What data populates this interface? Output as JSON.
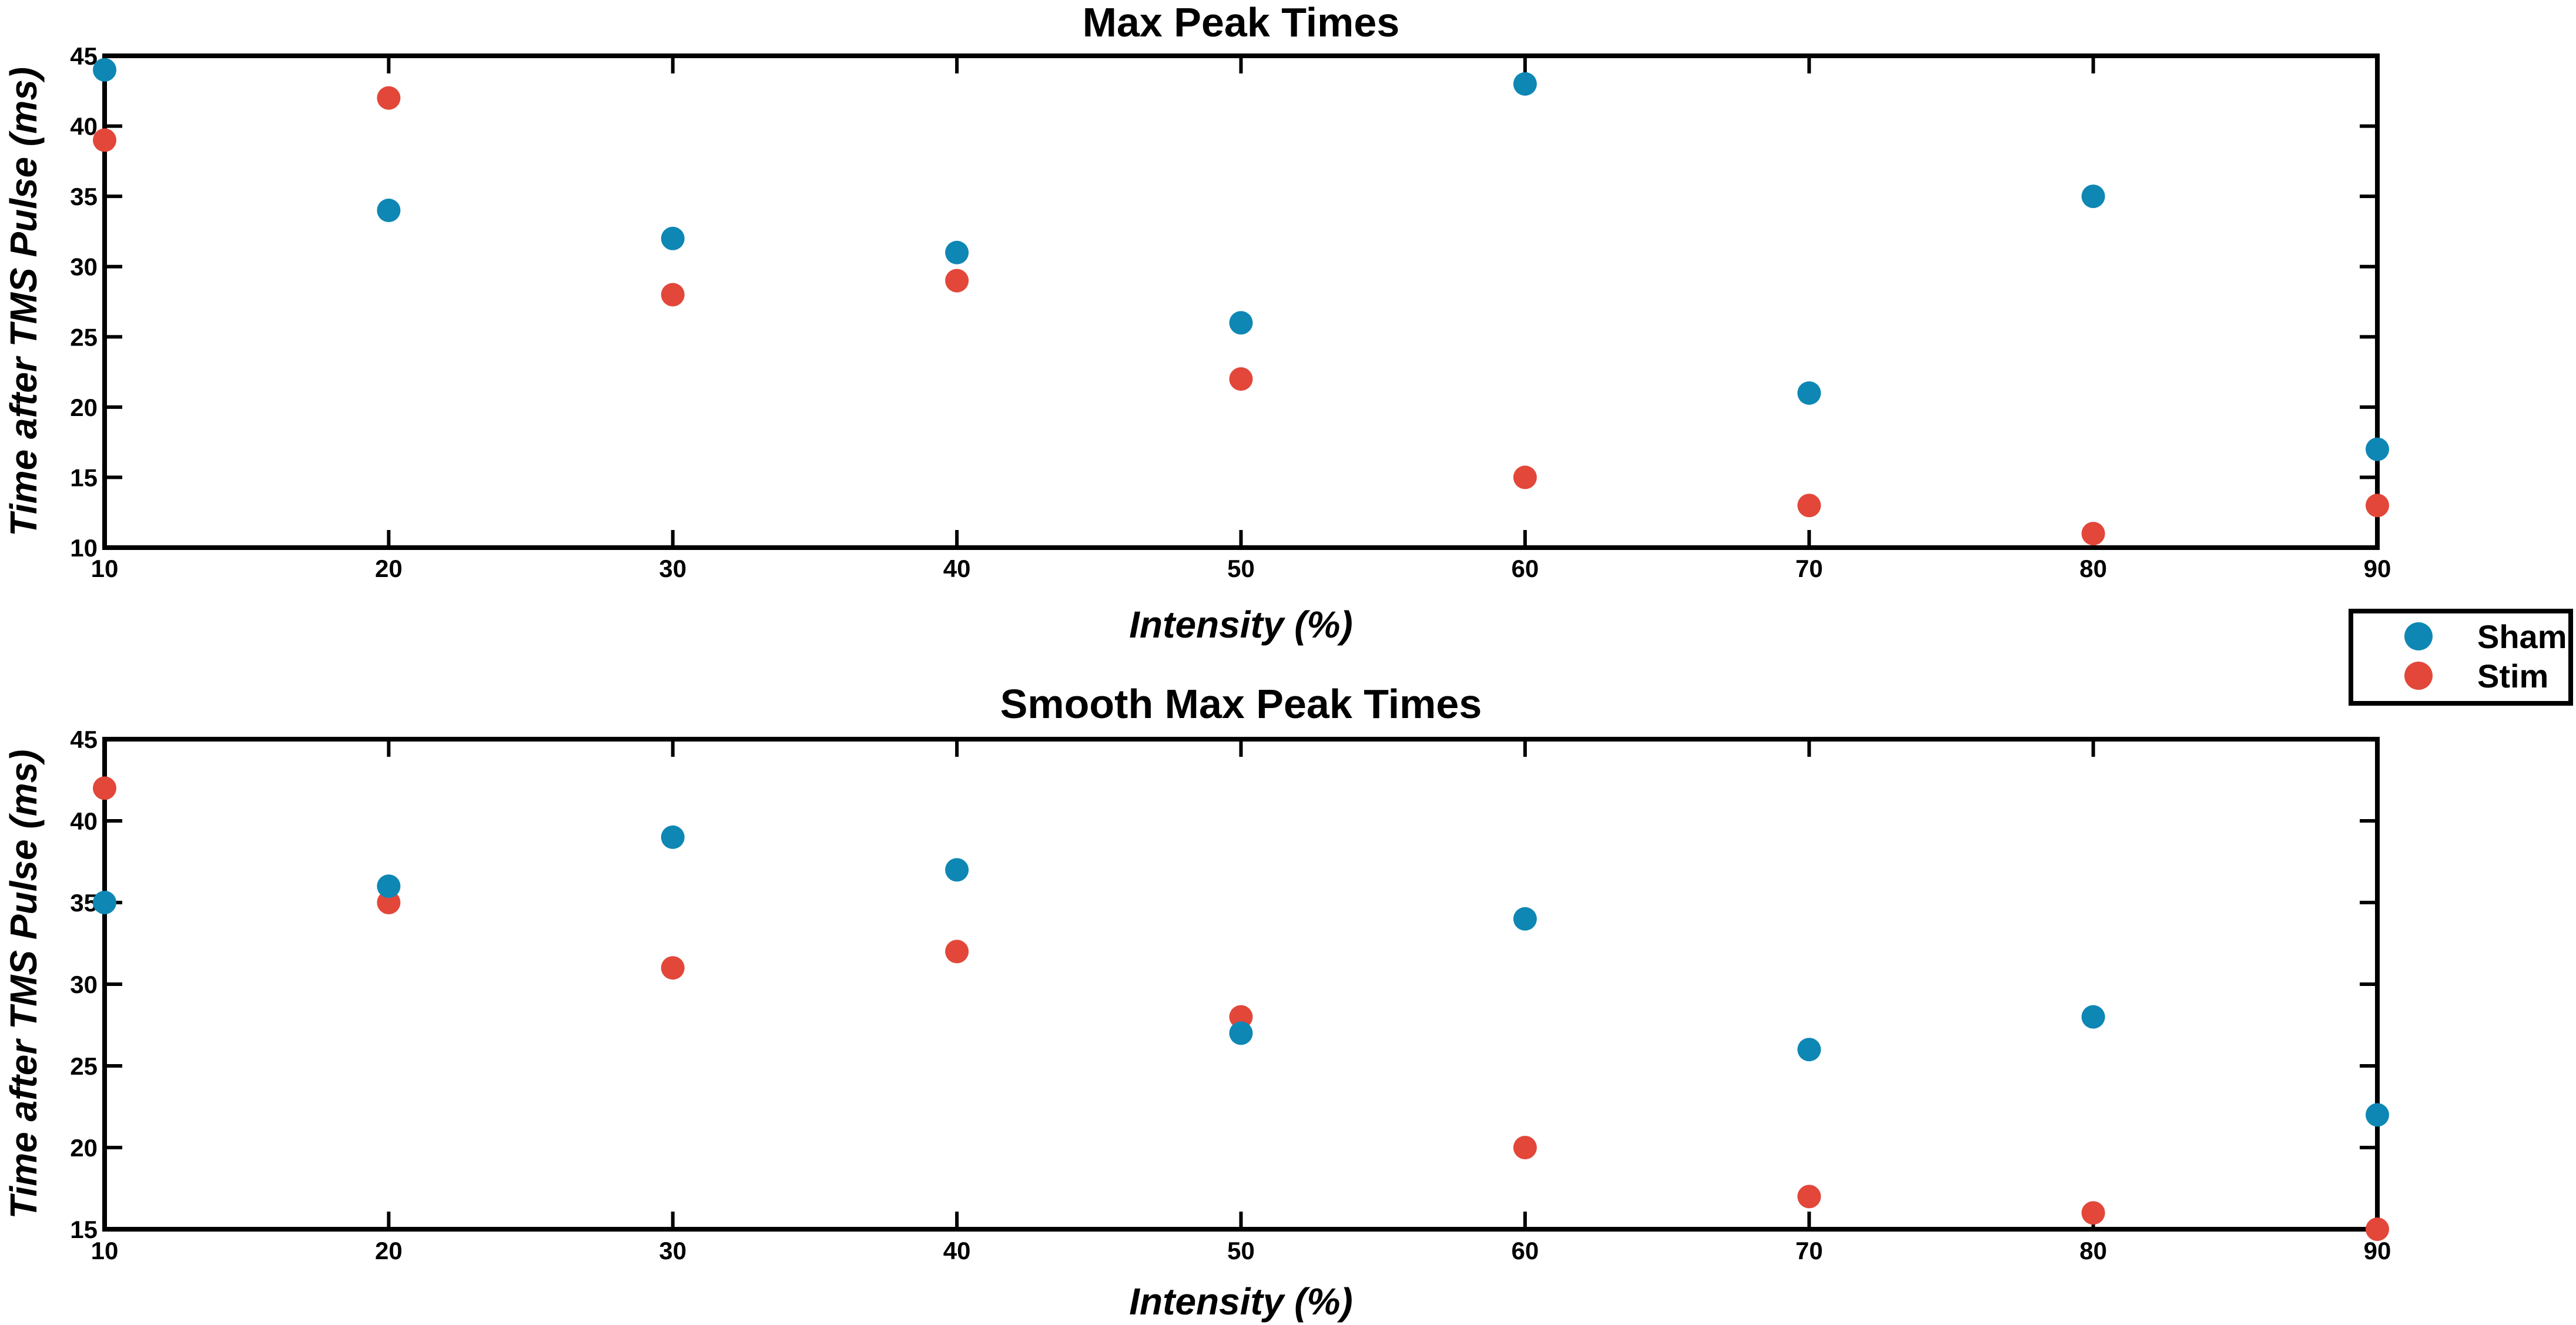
{
  "chart_data": [
    {
      "type": "scatter",
      "title": "Max Peak Times",
      "xlabel": "Intensity (%)",
      "ylabel": "Time after TMS Pulse (ms)",
      "xlim": [
        10,
        90
      ],
      "ylim": [
        10,
        45
      ],
      "x_ticks": [
        10,
        20,
        30,
        40,
        50,
        60,
        70,
        80,
        90
      ],
      "y_ticks": [
        10,
        15,
        20,
        25,
        30,
        35,
        40,
        45
      ],
      "grid": false,
      "x": [
        10,
        20,
        30,
        40,
        50,
        60,
        70,
        80,
        90
      ],
      "series": [
        {
          "name": "Sham",
          "color": "#0e87b4",
          "values": [
            44,
            34,
            32,
            31,
            26,
            43,
            21,
            35,
            17
          ]
        },
        {
          "name": "Stim",
          "color": "#e2473a",
          "values": [
            39,
            42,
            28,
            29,
            22,
            15,
            13,
            11,
            13
          ]
        }
      ]
    },
    {
      "type": "scatter",
      "title": "Smooth Max Peak Times",
      "xlabel": "Intensity (%)",
      "ylabel": "Time after TMS Pulse (ms)",
      "xlim": [
        10,
        90
      ],
      "ylim": [
        15,
        45
      ],
      "x_ticks": [
        10,
        20,
        30,
        40,
        50,
        60,
        70,
        80,
        90
      ],
      "y_ticks": [
        15,
        20,
        25,
        30,
        35,
        40,
        45
      ],
      "grid": false,
      "x": [
        10,
        20,
        30,
        40,
        50,
        60,
        70,
        80,
        90
      ],
      "series": [
        {
          "name": "Sham",
          "color": "#0e87b4",
          "values": [
            35,
            36,
            39,
            37,
            27,
            34,
            26,
            28,
            22
          ]
        },
        {
          "name": "Stim",
          "color": "#e2473a",
          "values": [
            42,
            35,
            31,
            32,
            28,
            20,
            17,
            16,
            15
          ]
        }
      ]
    }
  ],
  "legend": {
    "placement": "right, between panels",
    "items": [
      {
        "label": "Sham",
        "color": "#0e87b4"
      },
      {
        "label": "Stim",
        "color": "#e2473a"
      }
    ]
  }
}
